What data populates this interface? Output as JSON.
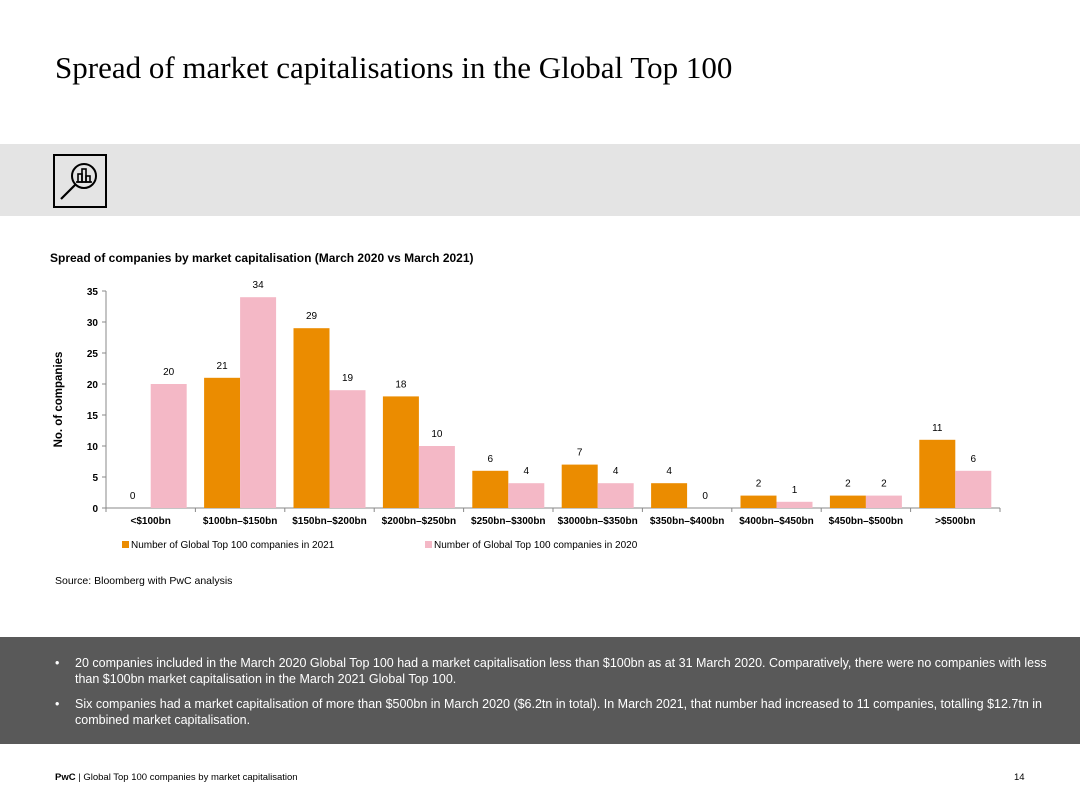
{
  "page": {
    "title": "Spread of market capitalisations in the Global Top 100",
    "icon": "magnifier-bar-chart-icon",
    "source": "Source: Bloomberg with PwC analysis",
    "bullets": [
      "20 companies included in the March 2020 Global Top 100 had a market capitalisation less than $100bn as at 31 March 2020. Comparatively, there were no companies with less than $100bn market capitalisation in the March 2021 Global Top 100.",
      "Six companies had a market capitalisation of more than $500bn in March 2020 ($6.2tn in total). In March 2021, that number had increased to 11 companies, totalling $12.7tn in combined market capitalisation."
    ],
    "bullet_symbol": "•",
    "footer": {
      "brand": "PwC",
      "separator": " | ",
      "text": "Global Top 100 companies by market capitalisation",
      "page_number": "14"
    },
    "colors": {
      "band": "#e4e4e4",
      "notes_bg": "#595959",
      "series_2021": "#eb8c00",
      "series_2020": "#f4b8c6"
    }
  },
  "chart_data": {
    "type": "bar",
    "title": "Spread of companies by market capitalisation (March 2020 vs March 2021)",
    "xlabel": "",
    "ylabel": "No. of companies",
    "ylim": [
      0,
      35
    ],
    "yticks": [
      0,
      5,
      10,
      15,
      20,
      25,
      30,
      35
    ],
    "grid": false,
    "legend_position": "bottom",
    "categories": [
      "<$100bn",
      "$100bn–$150bn",
      "$150bn–$200bn",
      "$200bn–$250bn",
      "$250bn–$300bn",
      "$3000bn–$350bn",
      "$350bn–$400bn",
      "$400bn–$450bn",
      "$450bn–$500bn",
      ">$500bn"
    ],
    "series": [
      {
        "name": "Number of Global Top 100 companies in 2021",
        "color": "#eb8c00",
        "values": [
          0,
          21,
          29,
          18,
          6,
          7,
          4,
          2,
          2,
          11
        ]
      },
      {
        "name": "Number of Global Top 100 companies in 2020",
        "color": "#f4b8c6",
        "values": [
          20,
          34,
          19,
          10,
          4,
          4,
          0,
          1,
          2,
          6
        ]
      }
    ]
  }
}
